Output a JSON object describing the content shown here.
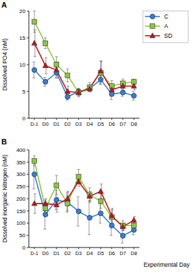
{
  "chart_data": [
    {
      "type": "line",
      "title": "A",
      "y_label": "Dissolved PO4 (nM)",
      "categories": [
        "D-1",
        "D0",
        "D1",
        "D2",
        "D3",
        "D4",
        "D5",
        "D6",
        "D7",
        "D8"
      ],
      "ylim": [
        0,
        20
      ],
      "yticks": [
        0,
        5,
        10,
        15,
        20
      ],
      "legend": "right",
      "series": [
        {
          "name": "C",
          "color": "#3b7dc9",
          "marker": "circle",
          "values": [
            9,
            6.8,
            8.5,
            4,
            5,
            5.5,
            7.2,
            4.5,
            4.8,
            4.2
          ],
          "errors": [
            1.5,
            0.8,
            1,
            0.6,
            0.5,
            0.4,
            0.8,
            1,
            0.7,
            0.8
          ]
        },
        {
          "name": "A",
          "color": "#8dc63f",
          "marker": "square",
          "values": [
            18,
            14,
            10,
            8,
            4.8,
            5.8,
            8.5,
            6,
            6.5,
            6.8
          ],
          "errors": [
            2,
            1,
            1.5,
            1.2,
            0.8,
            0.8,
            2.2,
            1,
            0.8,
            0.5
          ]
        },
        {
          "name": "SD",
          "color": "#c0141d",
          "marker": "triangle",
          "values": [
            14,
            9.8,
            9,
            5,
            4.8,
            5.5,
            8.8,
            5.3,
            6,
            6
          ],
          "errors": [
            2.5,
            1.5,
            1.5,
            1,
            0.6,
            0.6,
            1.8,
            0.8,
            0.8,
            0.7
          ]
        }
      ]
    },
    {
      "type": "line",
      "title": "B",
      "y_label": "Dissolved inorganic Nitrogen (nM)",
      "x_label": "Experimental Day",
      "categories": [
        "D-1",
        "D0",
        "D1",
        "D2",
        "D3",
        "D4",
        "D5",
        "D6",
        "D7",
        "D8"
      ],
      "ylim": [
        0,
        400
      ],
      "yticks": [
        0,
        50,
        100,
        150,
        200,
        250,
        300,
        350,
        400
      ],
      "series": [
        {
          "color": "#3b7dc9",
          "marker": "circle",
          "values": [
            300,
            135,
            195,
            185,
            148,
            122,
            140,
            90,
            48,
            72
          ],
          "errors": [
            60,
            60,
            40,
            40,
            60,
            70,
            40,
            40,
            30,
            20
          ]
        },
        {
          "color": "#8dc63f",
          "marker": "square",
          "values": [
            355,
            160,
            255,
            180,
            290,
            215,
            190,
            125,
            90,
            90
          ],
          "errors": [
            20,
            20,
            40,
            30,
            30,
            30,
            30,
            30,
            20,
            20
          ]
        },
        {
          "color": "#c0141d",
          "marker": "triangle",
          "values": [
            180,
            180,
            175,
            200,
            270,
            210,
            230,
            130,
            85,
            112
          ],
          "errors": [
            40,
            20,
            30,
            30,
            20,
            20,
            30,
            30,
            15,
            15
          ]
        }
      ]
    }
  ]
}
